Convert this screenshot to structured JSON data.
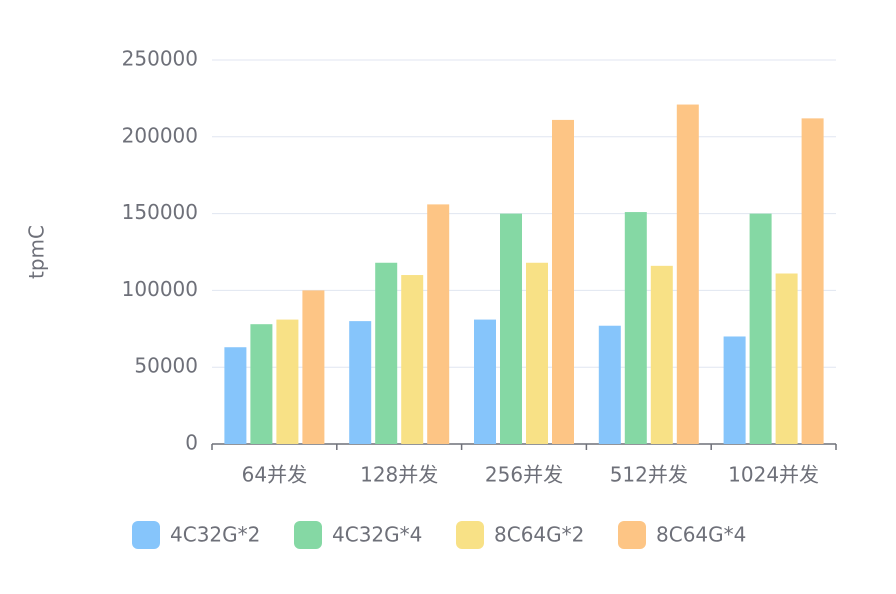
{
  "chart_data": {
    "type": "bar",
    "y_label": "tpmC",
    "categories": [
      "64并发",
      "128并发",
      "256并发",
      "512并发",
      "1024并发"
    ],
    "series": [
      {
        "name": "4C32G*2",
        "color": "#86c5fb",
        "values": [
          63000,
          80000,
          81000,
          77000,
          70000
        ]
      },
      {
        "name": "4C32G*4",
        "color": "#85d8a4",
        "values": [
          78000,
          118000,
          150000,
          151000,
          150000
        ]
      },
      {
        "name": "8C64G*2",
        "color": "#f8e186",
        "values": [
          81000,
          110000,
          118000,
          116000,
          111000
        ]
      },
      {
        "name": "8C64G*4",
        "color": "#fdc585",
        "values": [
          100000,
          156000,
          211000,
          221000,
          212000
        ]
      }
    ],
    "ylim": [
      0,
      250000
    ],
    "yticks": [
      0,
      50000,
      100000,
      150000,
      200000,
      250000
    ],
    "grid": true,
    "legend": "bottom"
  }
}
